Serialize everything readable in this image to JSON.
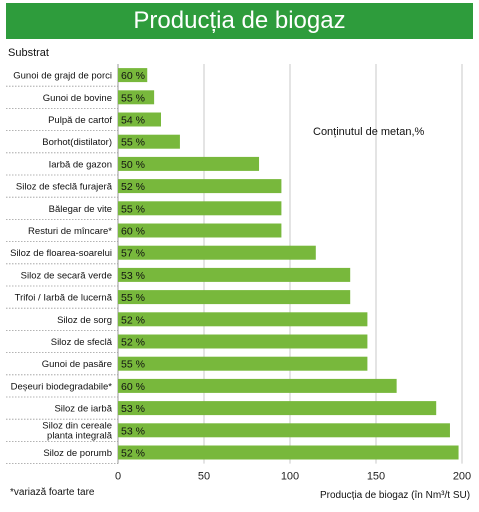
{
  "page": {
    "title": "Producția de biogaz",
    "footnote": "*variază foarte tare"
  },
  "chart_data": {
    "type": "bar",
    "orientation": "horizontal",
    "title": "Producția de biogaz",
    "category_axis_label": "Substrat",
    "value_axis_label": "Producția de biogaz (în Nm³/t SU)",
    "series_label": "Conținutul de metan,%",
    "xlim": [
      0,
      200
    ],
    "xticks": [
      0,
      50,
      100,
      150,
      200
    ],
    "grid": true,
    "bar_color": "#78b83c",
    "categories": [
      {
        "name": "Gunoi de grajd de porci",
        "value": 17,
        "methane": "60 %"
      },
      {
        "name": "Gunoi de bovine",
        "value": 21,
        "methane": "55 %"
      },
      {
        "name": "Pulpă de cartof",
        "value": 25,
        "methane": "54 %"
      },
      {
        "name": "Borhot(distilator)",
        "value": 36,
        "methane": "55 %"
      },
      {
        "name": "Iarbă de gazon",
        "value": 82,
        "methane": "50 %"
      },
      {
        "name": "Siloz de sfeclă furajeră",
        "value": 95,
        "methane": "52 %"
      },
      {
        "name": "Bălegar de vite",
        "value": 95,
        "methane": "55 %"
      },
      {
        "name": "Resturi de mîncare*",
        "value": 95,
        "methane": "60 %"
      },
      {
        "name": "Siloz de floarea-soarelui",
        "value": 115,
        "methane": "57 %"
      },
      {
        "name": "Siloz de secară verde",
        "value": 135,
        "methane": "53 %"
      },
      {
        "name": "Trifoi / Iarbă de lucernă",
        "value": 135,
        "methane": "55 %"
      },
      {
        "name": "Siloz de sorg",
        "value": 145,
        "methane": "52 %"
      },
      {
        "name": "Siloz de sfeclă",
        "value": 145,
        "methane": "52 %"
      },
      {
        "name": "Gunoi de pasăre",
        "value": 145,
        "methane": "55 %"
      },
      {
        "name": "Deșeuri biodegradabile*",
        "value": 162,
        "methane": "60 %"
      },
      {
        "name": "Siloz de iarbă",
        "value": 185,
        "methane": "53 %"
      },
      {
        "name": "Siloz din cereale planta integrală",
        "value": 193,
        "methane": "53 %"
      },
      {
        "name": "Siloz de porumb",
        "value": 198,
        "methane": "52 %"
      }
    ]
  }
}
